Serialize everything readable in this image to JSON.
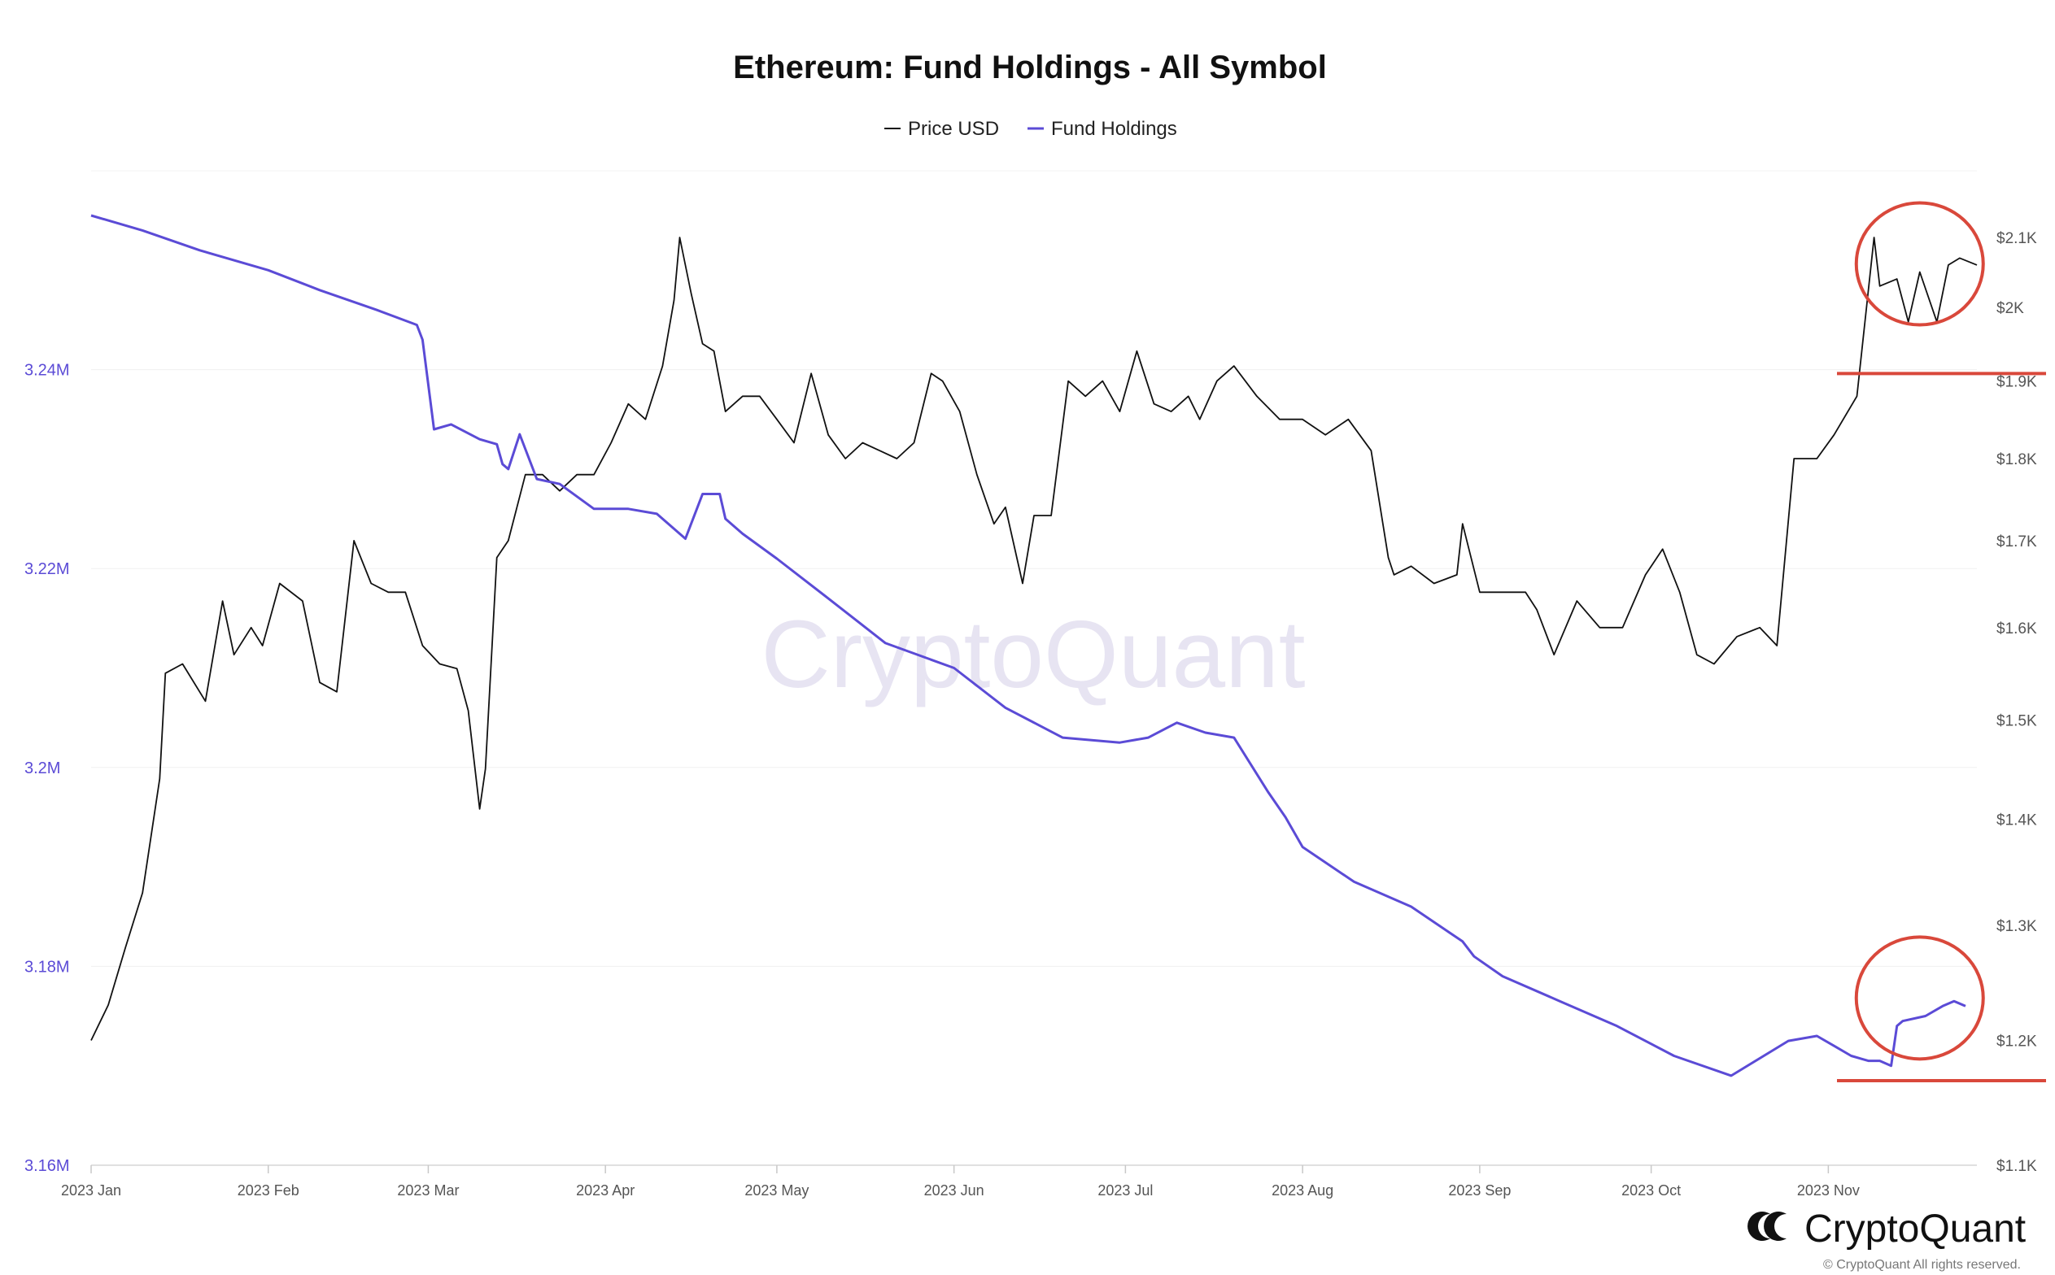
{
  "chart_data": {
    "type": "line",
    "title": "Ethereum: Fund Holdings - All Symbol",
    "xlabel": "",
    "ylabel_left": "",
    "ylabel_right": "",
    "legend": {
      "placement": "top-center",
      "entries": [
        {
          "name": "Price USD",
          "color": "#111111"
        },
        {
          "name": "Fund Holdings",
          "color": "#5b4bd6"
        }
      ]
    },
    "x_ticks": [
      "2023 Jan",
      "2023 Feb",
      "2023 Mar",
      "2023 Apr",
      "2023 May",
      "2023 Jun",
      "2023 Jul",
      "2023 Aug",
      "2023 Sep",
      "2023 Oct",
      "2023 Nov"
    ],
    "xlim": [
      "2023-01-01",
      "2023-11-27"
    ],
    "left_axis": {
      "ticks": [
        "3.16M",
        "3.18M",
        "3.2M",
        "3.22M",
        "3.24M"
      ],
      "tick_values": [
        3160000,
        3180000,
        3200000,
        3220000,
        3240000
      ],
      "ylim": [
        3160000,
        3260000
      ],
      "color": "#5b4bd6"
    },
    "right_axis": {
      "ticks": [
        "$1.1K",
        "$1.2K",
        "$1.3K",
        "$1.4K",
        "$1.5K",
        "$1.6K",
        "$1.7K",
        "$1.8K",
        "$1.9K",
        "$2K",
        "$2.1K"
      ],
      "tick_values": [
        1100,
        1200,
        1300,
        1400,
        1500,
        1600,
        1700,
        1800,
        1900,
        2000,
        2100
      ],
      "scale": "log",
      "ylim": [
        1100,
        2100
      ]
    },
    "grid": true,
    "series": [
      {
        "name": "Price USD",
        "axis": "right",
        "color": "#111111",
        "x": [
          "2023-01-01",
          "2023-01-04",
          "2023-01-07",
          "2023-01-10",
          "2023-01-13",
          "2023-01-14",
          "2023-01-17",
          "2023-01-21",
          "2023-01-24",
          "2023-01-26",
          "2023-01-29",
          "2023-01-31",
          "2023-02-03",
          "2023-02-07",
          "2023-02-10",
          "2023-02-13",
          "2023-02-16",
          "2023-02-19",
          "2023-02-22",
          "2023-02-25",
          "2023-02-28",
          "2023-03-03",
          "2023-03-06",
          "2023-03-08",
          "2023-03-10",
          "2023-03-11",
          "2023-03-13",
          "2023-03-15",
          "2023-03-18",
          "2023-03-21",
          "2023-03-24",
          "2023-03-27",
          "2023-03-30",
          "2023-04-02",
          "2023-04-05",
          "2023-04-08",
          "2023-04-11",
          "2023-04-13",
          "2023-04-14",
          "2023-04-16",
          "2023-04-18",
          "2023-04-20",
          "2023-04-22",
          "2023-04-25",
          "2023-04-28",
          "2023-05-01",
          "2023-05-04",
          "2023-05-07",
          "2023-05-10",
          "2023-05-13",
          "2023-05-16",
          "2023-05-19",
          "2023-05-22",
          "2023-05-25",
          "2023-05-28",
          "2023-05-30",
          "2023-06-02",
          "2023-06-05",
          "2023-06-08",
          "2023-06-10",
          "2023-06-13",
          "2023-06-15",
          "2023-06-18",
          "2023-06-21",
          "2023-06-24",
          "2023-06-27",
          "2023-06-30",
          "2023-07-03",
          "2023-07-06",
          "2023-07-09",
          "2023-07-12",
          "2023-07-14",
          "2023-07-17",
          "2023-07-20",
          "2023-07-24",
          "2023-07-28",
          "2023-08-01",
          "2023-08-05",
          "2023-08-09",
          "2023-08-13",
          "2023-08-16",
          "2023-08-17",
          "2023-08-20",
          "2023-08-24",
          "2023-08-28",
          "2023-08-29",
          "2023-09-01",
          "2023-09-05",
          "2023-09-09",
          "2023-09-11",
          "2023-09-14",
          "2023-09-18",
          "2023-09-22",
          "2023-09-26",
          "2023-09-30",
          "2023-10-03",
          "2023-10-06",
          "2023-10-09",
          "2023-10-12",
          "2023-10-16",
          "2023-10-20",
          "2023-10-23",
          "2023-10-26",
          "2023-10-30",
          "2023-11-02",
          "2023-11-06",
          "2023-11-09",
          "2023-11-10",
          "2023-11-13",
          "2023-11-15",
          "2023-11-17",
          "2023-11-20",
          "2023-11-22",
          "2023-11-24",
          "2023-11-27"
        ],
        "values": [
          1200,
          1230,
          1280,
          1330,
          1440,
          1550,
          1560,
          1520,
          1630,
          1570,
          1600,
          1580,
          1650,
          1630,
          1540,
          1530,
          1700,
          1650,
          1640,
          1640,
          1580,
          1560,
          1555,
          1510,
          1410,
          1450,
          1680,
          1700,
          1780,
          1780,
          1760,
          1780,
          1780,
          1820,
          1870,
          1850,
          1920,
          2010,
          2100,
          2020,
          1950,
          1940,
          1860,
          1880,
          1880,
          1850,
          1820,
          1910,
          1830,
          1800,
          1820,
          1810,
          1800,
          1820,
          1910,
          1900,
          1860,
          1780,
          1720,
          1740,
          1650,
          1730,
          1730,
          1900,
          1880,
          1900,
          1860,
          1940,
          1870,
          1860,
          1880,
          1850,
          1900,
          1920,
          1880,
          1850,
          1850,
          1830,
          1850,
          1810,
          1680,
          1660,
          1670,
          1650,
          1660,
          1720,
          1640,
          1640,
          1640,
          1620,
          1570,
          1630,
          1600,
          1600,
          1660,
          1690,
          1640,
          1570,
          1560,
          1590,
          1600,
          1580,
          1800,
          1800,
          1830,
          1880,
          2100,
          2030,
          2040,
          1980,
          2050,
          1980,
          2060,
          2070,
          2060
        ]
      },
      {
        "name": "Fund Holdings",
        "axis": "left",
        "color": "#5b4bd6",
        "x": [
          "2023-01-01",
          "2023-01-10",
          "2023-01-20",
          "2023-02-01",
          "2023-02-10",
          "2023-02-20",
          "2023-02-27",
          "2023-02-28",
          "2023-03-02",
          "2023-03-05",
          "2023-03-10",
          "2023-03-13",
          "2023-03-14",
          "2023-03-15",
          "2023-03-17",
          "2023-03-20",
          "2023-03-24",
          "2023-03-30",
          "2023-04-05",
          "2023-04-10",
          "2023-04-15",
          "2023-04-18",
          "2023-04-21",
          "2023-04-22",
          "2023-04-25",
          "2023-05-01",
          "2023-05-10",
          "2023-05-20",
          "2023-06-01",
          "2023-06-10",
          "2023-06-20",
          "2023-06-30",
          "2023-07-05",
          "2023-07-10",
          "2023-07-15",
          "2023-07-20",
          "2023-07-26",
          "2023-07-29",
          "2023-08-01",
          "2023-08-10",
          "2023-08-20",
          "2023-08-29",
          "2023-08-31",
          "2023-09-05",
          "2023-09-15",
          "2023-09-25",
          "2023-10-05",
          "2023-10-15",
          "2023-10-25",
          "2023-10-30",
          "2023-11-02",
          "2023-11-05",
          "2023-11-08",
          "2023-11-10",
          "2023-11-12",
          "2023-11-13",
          "2023-11-14",
          "2023-11-18",
          "2023-11-21",
          "2023-11-23",
          "2023-11-25"
        ],
        "values": [
          3255500,
          3254000,
          3252000,
          3250000,
          3248000,
          3246000,
          3244500,
          3243000,
          3234000,
          3234500,
          3233000,
          3232500,
          3230500,
          3230000,
          3233500,
          3229000,
          3228500,
          3226000,
          3226000,
          3225500,
          3223000,
          3227500,
          3227500,
          3225000,
          3223500,
          3221000,
          3217000,
          3212500,
          3210000,
          3206000,
          3203000,
          3202500,
          3203000,
          3204500,
          3203500,
          3203000,
          3197500,
          3195000,
          3192000,
          3188500,
          3186000,
          3182500,
          3181000,
          3179000,
          3176500,
          3174000,
          3171000,
          3169000,
          3172500,
          3173000,
          3172000,
          3171000,
          3170500,
          3170500,
          3170000,
          3174000,
          3174500,
          3175000,
          3176000,
          3176500,
          3176000
        ]
      }
    ],
    "annotations": [
      {
        "type": "circle",
        "target": "Price USD",
        "x": "2023-11-17",
        "color": "#d9483b"
      },
      {
        "type": "horizontal-line",
        "target": "Price USD",
        "value": 1910,
        "color": "#d9483b"
      },
      {
        "type": "circle",
        "target": "Fund Holdings",
        "x": "2023-11-17",
        "color": "#d9483b"
      },
      {
        "type": "horizontal-line",
        "target": "Fund Holdings",
        "value": 3168500,
        "color": "#d9483b"
      }
    ]
  },
  "watermark": "CryptoQuant",
  "brand": {
    "name": "CryptoQuant",
    "copyright": "© CryptoQuant All rights reserved."
  }
}
